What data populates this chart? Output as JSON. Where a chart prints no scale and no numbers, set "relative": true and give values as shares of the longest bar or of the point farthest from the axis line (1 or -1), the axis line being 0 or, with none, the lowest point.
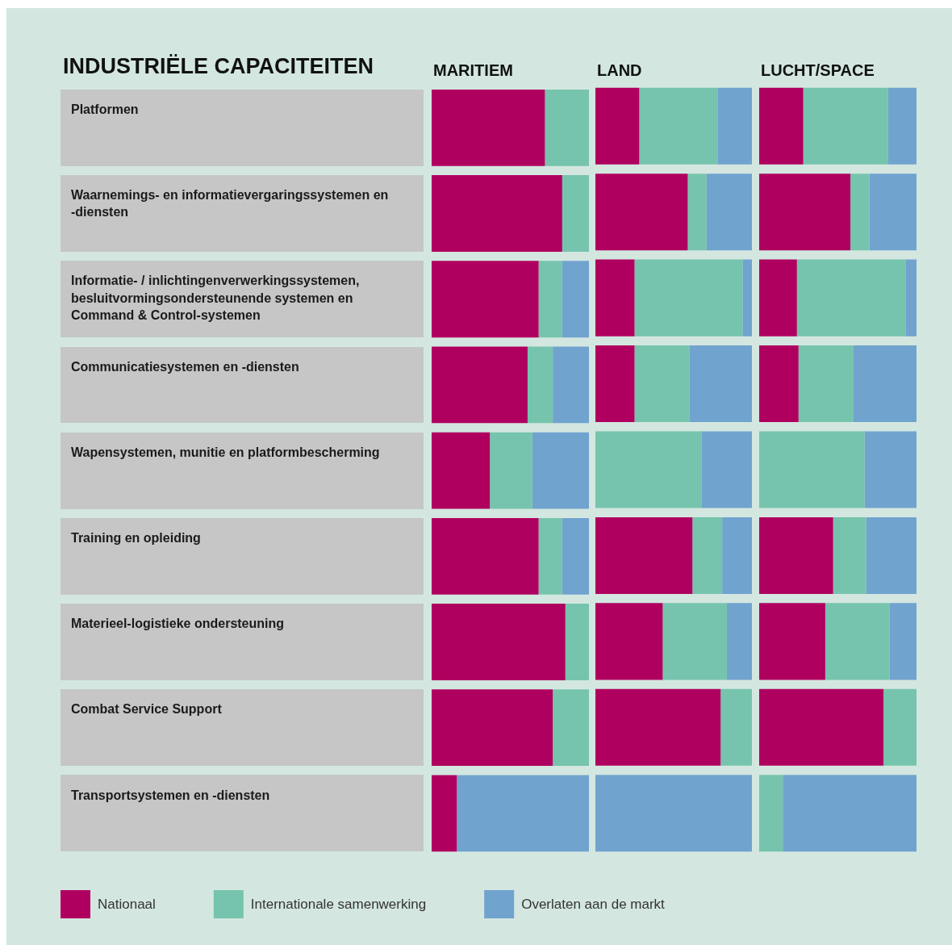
{
  "chart_data": [
    {
      "type": "bar",
      "orientation": "horizontal",
      "stacked": true,
      "relative": true,
      "title": "MARITIEM",
      "ylabel": "INDUSTRIËLE CAPACITEITEN",
      "legend": "bottom",
      "categories": [
        "Platformen",
        "Waarnemings- en informatievergaringssystemen en -diensten",
        "Informatie- / inlichtingenverwerkingssystemen, besluitvormingsondersteunende systemen en Command & Control-systemen",
        "Communicatiesystemen en -diensten",
        "Wapensystemen, munitie en platformbescherming",
        "Training en opleiding",
        "Materieel-logistieke ondersteuning",
        "Combat Service Support",
        "Transportsystemen en -diensten"
      ],
      "series": [
        {
          "name": "Nationaal",
          "color": "#b0005f",
          "values": [
            0.72,
            0.83,
            0.68,
            0.61,
            0.37,
            0.68,
            0.85,
            0.77,
            0.16
          ]
        },
        {
          "name": "Internationale samenwerking",
          "color": "#76c4ad",
          "values": [
            0.28,
            0.17,
            0.15,
            0.16,
            0.27,
            0.15,
            0.15,
            0.23,
            0
          ]
        },
        {
          "name": "Overlaten aan de markt",
          "color": "#71a3cf",
          "values": [
            0,
            0,
            0.17,
            0.23,
            0.36,
            0.17,
            0,
            0,
            0.84
          ]
        }
      ]
    },
    {
      "type": "bar",
      "orientation": "horizontal",
      "stacked": true,
      "relative": true,
      "title": "LAND",
      "tick_labels": false,
      "series": [
        {
          "color": "#b0005f",
          "values": [
            0.28,
            0.59,
            0.25,
            0.25,
            0,
            0.62,
            0.43,
            0.8,
            0
          ]
        },
        {
          "color": "#76c4ad",
          "values": [
            0.5,
            0.12,
            0.69,
            0.35,
            0.68,
            0.19,
            0.41,
            0.2,
            0
          ]
        },
        {
          "color": "#71a3cf",
          "values": [
            0.22,
            0.29,
            0.06,
            0.4,
            0.32,
            0.19,
            0.16,
            0,
            1
          ]
        }
      ]
    },
    {
      "type": "bar",
      "orientation": "horizontal",
      "stacked": true,
      "relative": true,
      "title": "LUCHT/SPACE",
      "tick_labels": false,
      "series": [
        {
          "color": "#b0005f",
          "values": [
            0.28,
            0.58,
            0.24,
            0.25,
            0,
            0.47,
            0.42,
            0.79,
            0
          ]
        },
        {
          "color": "#76c4ad",
          "values": [
            0.54,
            0.12,
            0.69,
            0.35,
            0.67,
            0.21,
            0.41,
            0.21,
            0.15
          ]
        },
        {
          "color": "#71a3cf",
          "values": [
            0.18,
            0.3,
            0.07,
            0.4,
            0.33,
            0.32,
            0.17,
            0,
            0.85
          ]
        }
      ]
    }
  ]
}
